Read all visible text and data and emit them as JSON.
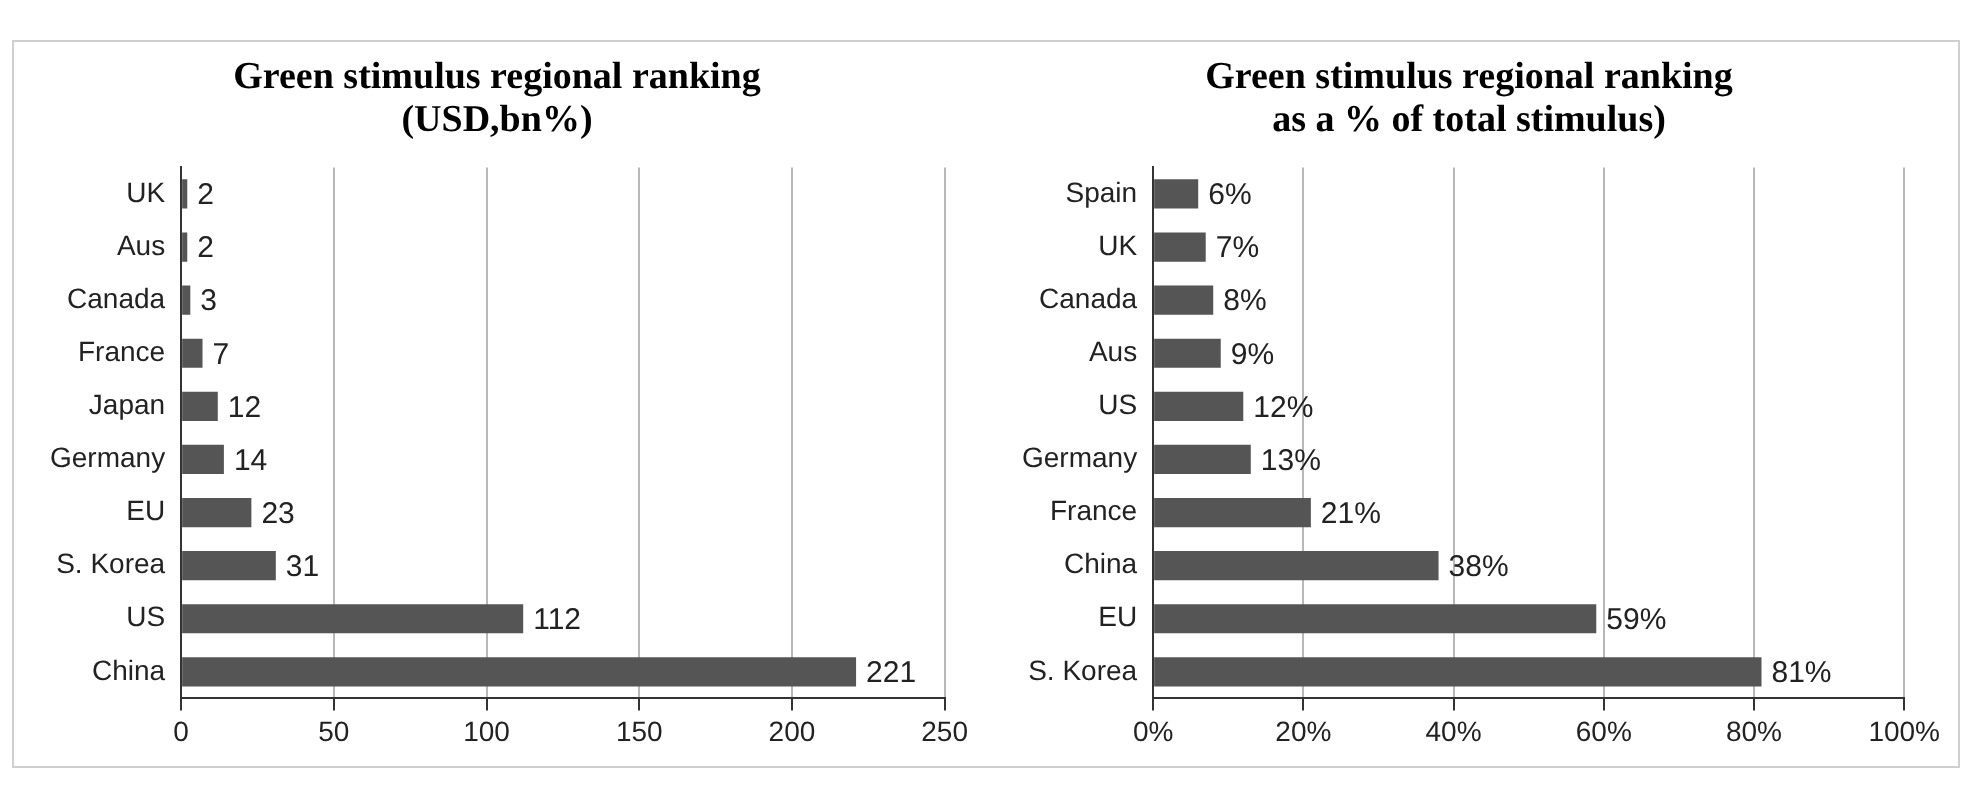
{
  "chart_data": [
    {
      "type": "bar",
      "orientation": "horizontal",
      "title": "Green stimulus regional ranking (USD,bn%)",
      "categories": [
        "UK",
        "Aus",
        "Canada",
        "France",
        "Japan",
        "Germany",
        "EU",
        "S. Korea",
        "US",
        "China"
      ],
      "values": [
        2,
        2,
        3,
        7,
        12,
        14,
        23,
        31,
        112,
        221
      ],
      "color": "#555555",
      "xlim": [
        0,
        250
      ],
      "xticks": [
        0,
        50,
        100,
        150,
        200,
        250
      ],
      "grid": "x",
      "legend": false,
      "data_labels": true
    },
    {
      "type": "bar",
      "orientation": "horizontal",
      "title": "Green stimulus regional ranking as a % of total stimulus)",
      "categories": [
        "Spain",
        "UK",
        "Canada",
        "Aus",
        "US",
        "Germany",
        "France",
        "China",
        "EU",
        "S. Korea"
      ],
      "values": [
        6,
        7,
        8,
        9,
        12,
        13,
        21,
        38,
        59,
        81
      ],
      "value_labels": [
        "6%",
        "7%",
        "8%",
        "9%",
        "12%",
        "13%",
        "21%",
        "38%",
        "59%",
        "81%"
      ],
      "color": "#555555",
      "xlim": [
        0,
        100
      ],
      "xticks": [
        {
          "value": 0,
          "label": "0%"
        },
        {
          "value": 20,
          "label": "20%"
        },
        {
          "value": 40,
          "label": "40%"
        },
        {
          "value": 60,
          "label": "60%"
        },
        {
          "value": 80,
          "label": "80%"
        },
        {
          "value": 100,
          "label": "100%"
        }
      ],
      "grid": "x",
      "legend": false
    }
  ]
}
